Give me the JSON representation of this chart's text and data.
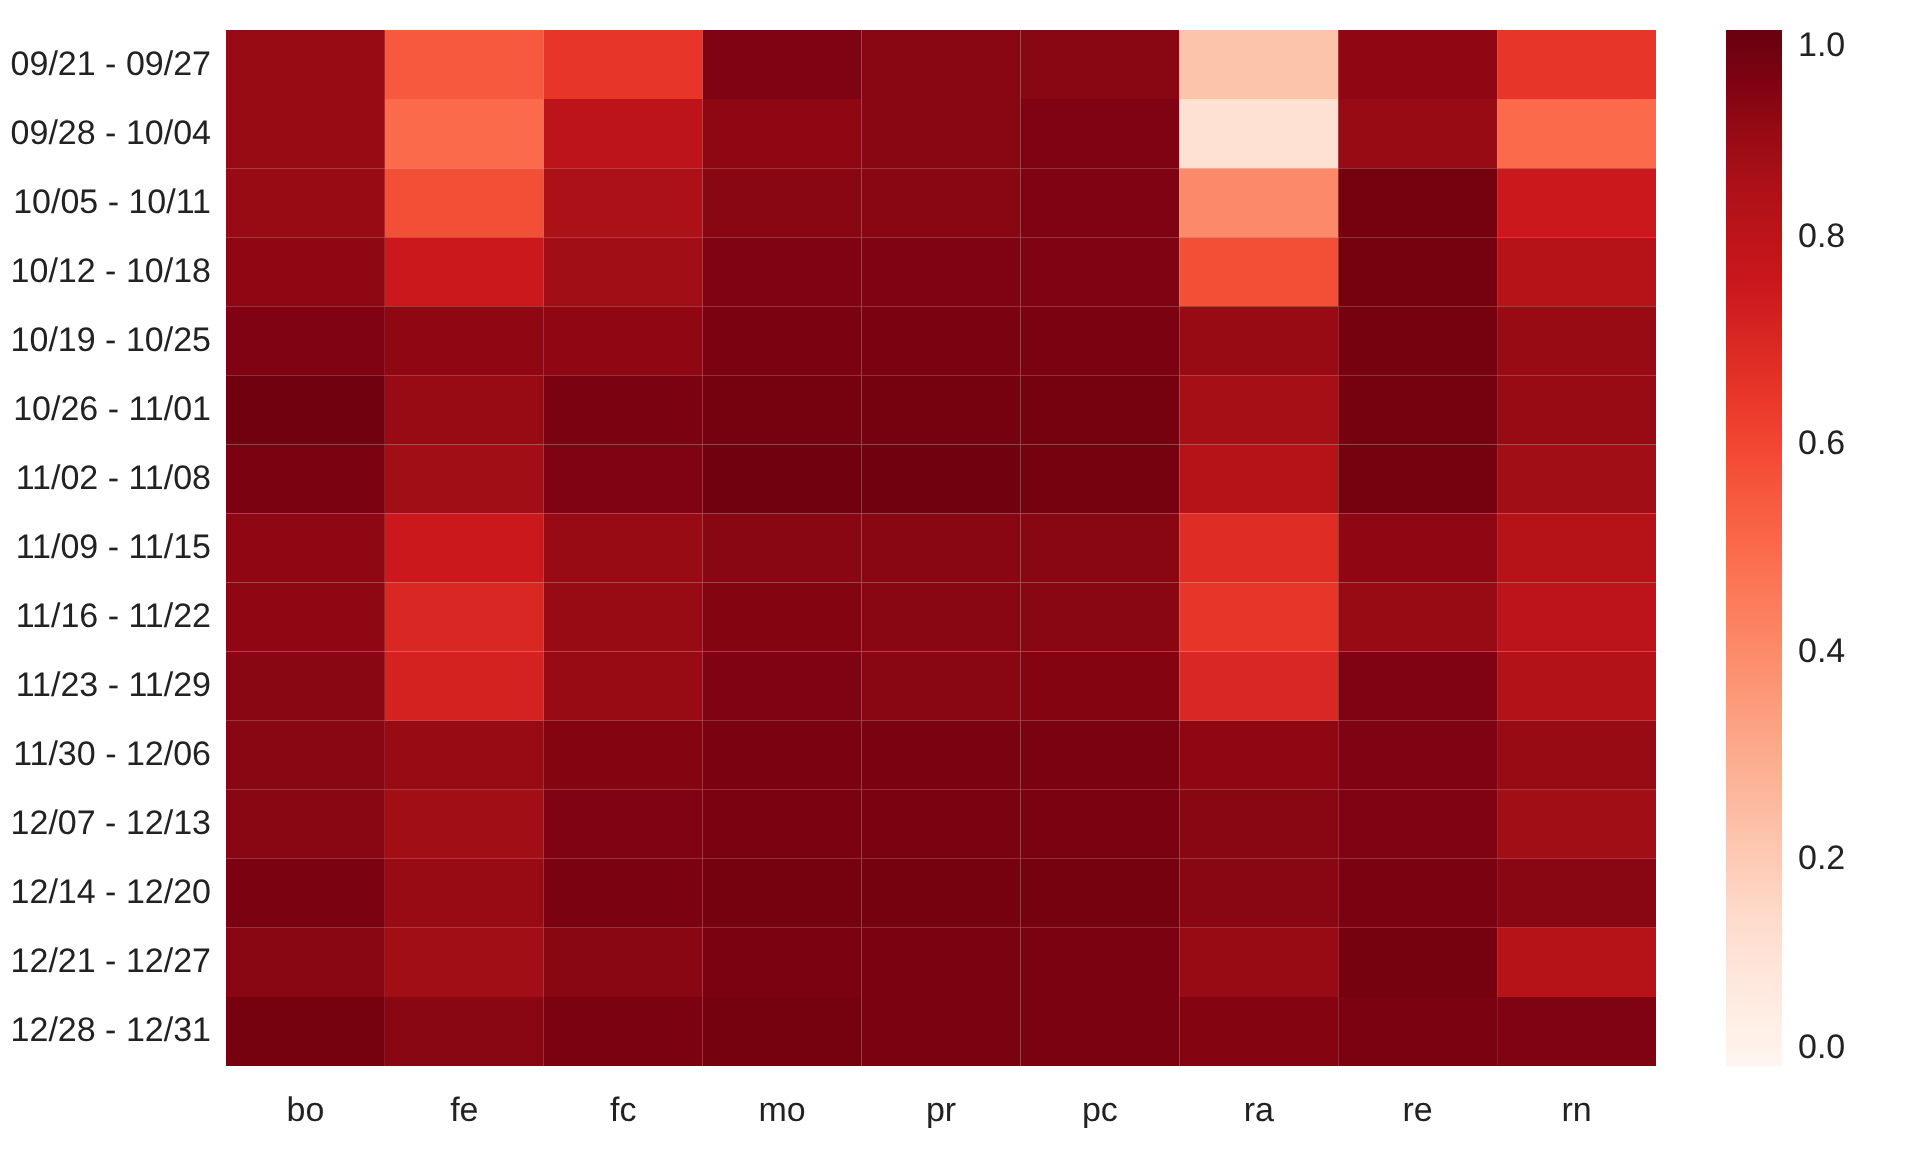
{
  "chart_data": {
    "type": "heatmap",
    "categories": [
      "bo",
      "fe",
      "fc",
      "mo",
      "pr",
      "pc",
      "ra",
      "re",
      "rn"
    ],
    "y_categories": [
      "09/21 - 09/27",
      "09/28 - 10/04",
      "10/05 - 10/11",
      "10/12 - 10/18",
      "10/19 - 10/25",
      "10/26 - 11/01",
      "11/02 - 11/08",
      "11/09 - 11/15",
      "11/16 - 11/22",
      "11/23 - 11/29",
      "11/30 - 12/06",
      "12/07 - 12/13",
      "12/14 - 12/20",
      "12/21 - 12/27",
      "12/28 - 12/31"
    ],
    "cells": [
      [
        0.9,
        0.55,
        0.65,
        0.95,
        0.93,
        0.93,
        0.22,
        0.92,
        0.65
      ],
      [
        0.9,
        0.5,
        0.8,
        0.92,
        0.93,
        0.95,
        0.12,
        0.9,
        0.5
      ],
      [
        0.9,
        0.58,
        0.85,
        0.93,
        0.93,
        0.95,
        0.4,
        0.97,
        0.75
      ],
      [
        0.92,
        0.75,
        0.88,
        0.95,
        0.95,
        0.95,
        0.58,
        0.97,
        0.82
      ],
      [
        0.95,
        0.92,
        0.92,
        0.96,
        0.96,
        0.96,
        0.9,
        0.97,
        0.9
      ],
      [
        0.98,
        0.9,
        0.96,
        0.97,
        0.97,
        0.97,
        0.87,
        0.97,
        0.9
      ],
      [
        0.96,
        0.88,
        0.95,
        0.98,
        0.98,
        0.97,
        0.82,
        0.97,
        0.88
      ],
      [
        0.92,
        0.75,
        0.9,
        0.93,
        0.93,
        0.93,
        0.68,
        0.92,
        0.82
      ],
      [
        0.92,
        0.7,
        0.9,
        0.94,
        0.93,
        0.93,
        0.65,
        0.9,
        0.8
      ],
      [
        0.93,
        0.72,
        0.9,
        0.95,
        0.93,
        0.94,
        0.7,
        0.95,
        0.83
      ],
      [
        0.93,
        0.9,
        0.94,
        0.96,
        0.96,
        0.96,
        0.92,
        0.95,
        0.9
      ],
      [
        0.93,
        0.88,
        0.95,
        0.96,
        0.96,
        0.96,
        0.93,
        0.95,
        0.88
      ],
      [
        0.96,
        0.9,
        0.96,
        0.97,
        0.97,
        0.97,
        0.93,
        0.96,
        0.93
      ],
      [
        0.93,
        0.88,
        0.93,
        0.96,
        0.96,
        0.96,
        0.9,
        0.97,
        0.82
      ],
      [
        0.97,
        0.93,
        0.96,
        0.97,
        0.96,
        0.96,
        0.94,
        0.96,
        0.95
      ]
    ],
    "clim": [
      0,
      1
    ],
    "cticks": [
      {
        "value": 0,
        "label": "0.0"
      },
      {
        "value": 0.2,
        "label": "0.2"
      },
      {
        "value": 0.4,
        "label": "0.4"
      },
      {
        "value": 0.6,
        "label": "0.6"
      },
      {
        "value": 0.8,
        "label": "0.8"
      },
      {
        "value": 1,
        "label": "1.0"
      }
    ]
  }
}
